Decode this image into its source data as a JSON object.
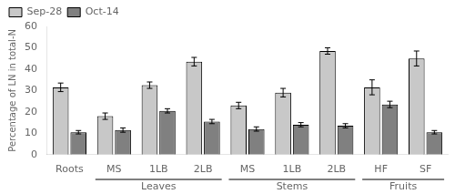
{
  "chart_data": {
    "type": "bar",
    "categories": [
      "Roots",
      "MS",
      "1LB",
      "2LB",
      "MS",
      "1LB",
      "2LB",
      "HF",
      "SF"
    ],
    "series": [
      {
        "name": "Sep-28",
        "color": "#c8c8c8",
        "values": [
          31.5,
          18.0,
          32.5,
          43.5,
          23.0,
          29.0,
          48.5,
          31.5,
          45.0
        ],
        "errors": [
          2.0,
          1.5,
          1.5,
          2.0,
          1.5,
          2.0,
          1.5,
          3.5,
          3.5
        ]
      },
      {
        "name": "Oct-14",
        "color": "#808080",
        "values": [
          10.5,
          11.5,
          20.5,
          15.5,
          12.0,
          14.0,
          13.5,
          23.5,
          10.5
        ],
        "errors": [
          0.8,
          1.0,
          1.0,
          1.0,
          1.0,
          1.0,
          1.0,
          1.5,
          0.8
        ]
      }
    ],
    "ylabel": "Percentage of LN in total-N",
    "ylim": [
      0,
      60
    ],
    "yticks": [
      0,
      10,
      20,
      30,
      40,
      50,
      60
    ],
    "grid": false,
    "legend": "upper left",
    "sections": [
      {
        "label": "Leaves",
        "first": 1,
        "last": 3
      },
      {
        "label": "Stems",
        "first": 4,
        "last": 6
      },
      {
        "label": "Fruits",
        "first": 7,
        "last": 8
      }
    ]
  }
}
